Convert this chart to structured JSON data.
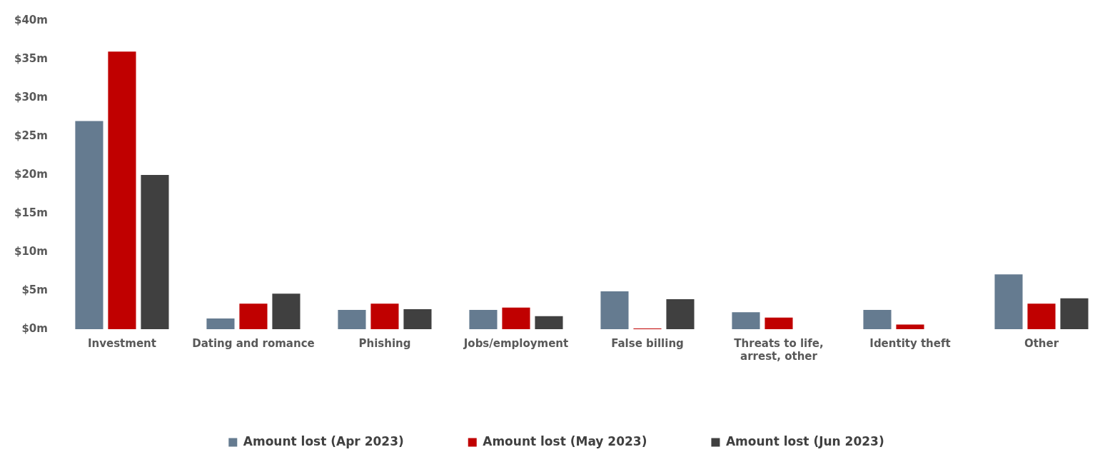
{
  "chart_data": {
    "type": "bar",
    "categories": [
      "Investment",
      "Dating and romance",
      "Phishing",
      "Jobs/employment",
      "False billing",
      "Threats to life, arrest, other",
      "Identity theft",
      "Other"
    ],
    "series": [
      {
        "name": "Amount lost (Apr 2023)",
        "color": "#657b90",
        "values": [
          27,
          1.4,
          2.5,
          2.5,
          4.9,
          2.2,
          2.5,
          7.1
        ]
      },
      {
        "name": "Amount lost (May 2023)",
        "color": "#c00000",
        "values": [
          36,
          3.3,
          3.3,
          2.8,
          0.1,
          1.5,
          0.6,
          3.3
        ]
      },
      {
        "name": "Amount lost (Jun 2023)",
        "color": "#404040",
        "values": [
          20,
          4.6,
          2.6,
          1.7,
          3.9,
          null,
          null,
          4.0
        ]
      }
    ],
    "ylim": [
      0,
      40
    ],
    "yticks": [
      {
        "value": 0,
        "label": "$0m"
      },
      {
        "value": 5,
        "label": "$5m"
      },
      {
        "value": 10,
        "label": "$10m"
      },
      {
        "value": 15,
        "label": "$15m"
      },
      {
        "value": 20,
        "label": "$20m"
      },
      {
        "value": 25,
        "label": "$25m"
      },
      {
        "value": 30,
        "label": "$30m"
      },
      {
        "value": 35,
        "label": "$35m"
      },
      {
        "value": 40,
        "label": "$40m"
      }
    ],
    "grid": false,
    "legend": "bottom"
  }
}
